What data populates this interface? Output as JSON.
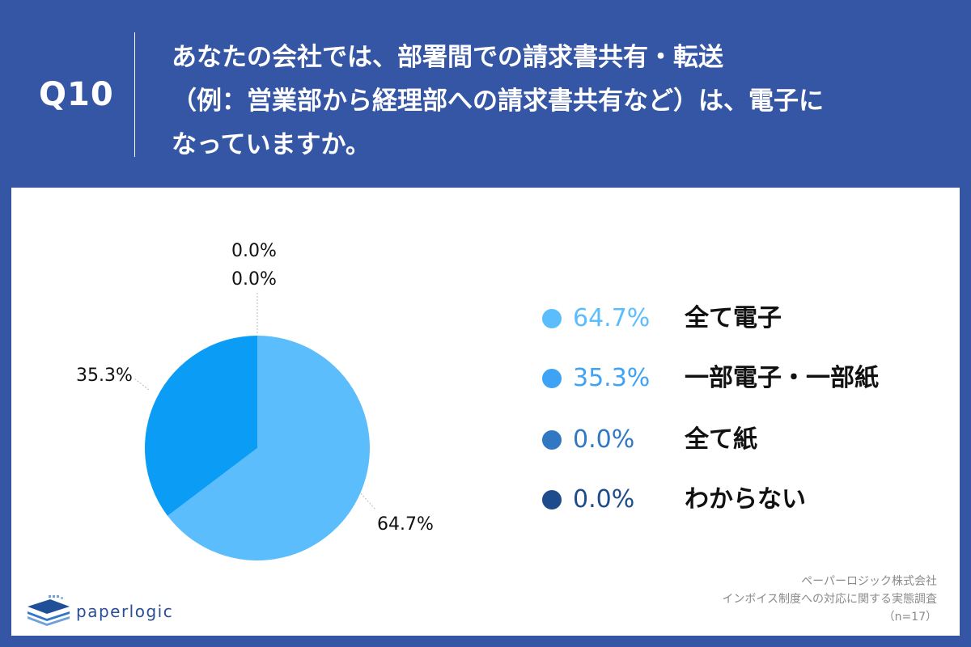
{
  "header": {
    "qnum": "Q10",
    "question_lines": [
      "あなたの会社では、部署間での請求書共有・転送",
      "（例：営業部から経理部への請求書共有など）は、電子に",
      "なっていますか。"
    ]
  },
  "chart_data": {
    "type": "pie",
    "title": "",
    "slices": [
      {
        "label": "全て電子",
        "value": 64.7,
        "display": "64.7%",
        "color": "#5bbdfb"
      },
      {
        "label": "一部電子・一部紙",
        "value": 35.3,
        "display": "35.3%",
        "color": "#0b9df5"
      },
      {
        "label": "全て紙",
        "value": 0.0,
        "display": "0.0%",
        "color": "#3178c4"
      },
      {
        "label": "わからない",
        "value": 0.0,
        "display": "0.0%",
        "color": "#1d4c8c"
      }
    ],
    "legend_placement": "right"
  },
  "legend": {
    "items": [
      {
        "value": "64.7%",
        "label": "全て電子",
        "color": "#5bbdfb",
        "text_color": "#5bbdfb"
      },
      {
        "value": "35.3%",
        "label": "一部電子・一部紙",
        "color": "#3ea2f5",
        "text_color": "#3ea2f5"
      },
      {
        "value": "0.0%",
        "label": "全て紙",
        "color": "#3178c4",
        "text_color": "#3178c4"
      },
      {
        "value": "0.0%",
        "label": "わからない",
        "color": "#1d4c8c",
        "text_color": "#1d4c8c"
      }
    ]
  },
  "brand": {
    "logo_text": "paperlogic",
    "logo_icon": "paperlogic-logo-icon"
  },
  "source": {
    "company": "ペーパーロジック株式会社",
    "survey": "インボイス制度への対応に関する実態調査",
    "sample": "（n=17）"
  }
}
